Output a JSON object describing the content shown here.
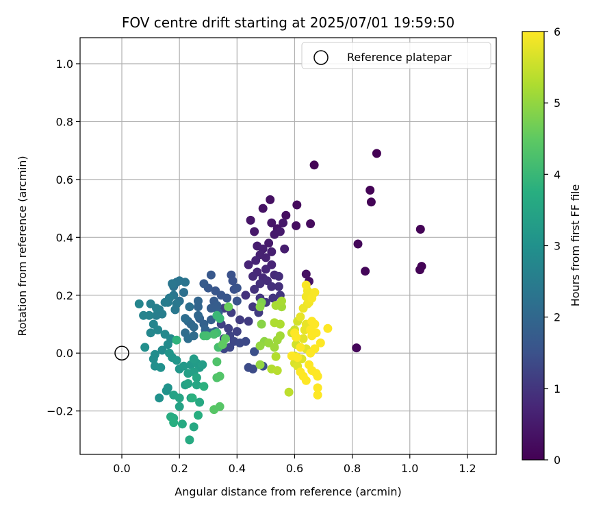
{
  "chart_data": {
    "type": "scatter",
    "title": "FOV centre drift starting at 2025/07/01 19:59:50",
    "xlabel": "Angular distance from reference (arcmin)",
    "ylabel": "Rotation from reference (arcmin)",
    "xlim": [
      -0.145,
      1.3
    ],
    "ylim": [
      -0.35,
      1.09
    ],
    "xticks": [
      0.0,
      0.2,
      0.4,
      0.6,
      0.8,
      1.0,
      1.2
    ],
    "xtick_labels": [
      "0.0",
      "0.2",
      "0.4",
      "0.6",
      "0.8",
      "1.0",
      "1.2"
    ],
    "yticks": [
      -0.2,
      0.0,
      0.2,
      0.4,
      0.6,
      0.8,
      1.0
    ],
    "ytick_labels": [
      "−0.2",
      "0.0",
      "0.2",
      "0.4",
      "0.6",
      "0.8",
      "1.0"
    ],
    "grid": true,
    "legend": {
      "position": "top-right",
      "entries": [
        "Reference platepar"
      ]
    },
    "reference_point": {
      "x": 0.0,
      "y": 0.0
    },
    "colorbar": {
      "label": "Hours from first FF file",
      "min": 0,
      "max": 6,
      "ticks": [
        0,
        1,
        2,
        3,
        4,
        5,
        6
      ],
      "tick_labels": [
        "0",
        "1",
        "2",
        "3",
        "4",
        "5",
        "6"
      ],
      "colormap": "viridis"
    },
    "points": [
      {
        "x": 0.885,
        "y": 0.69,
        "h": 0.0
      },
      {
        "x": 0.668,
        "y": 0.65,
        "h": 0.05
      },
      {
        "x": 0.862,
        "y": 0.563,
        "h": 0.05
      },
      {
        "x": 0.866,
        "y": 0.522,
        "h": 0.05
      },
      {
        "x": 1.037,
        "y": 0.428,
        "h": 0.05
      },
      {
        "x": 1.041,
        "y": 0.3,
        "h": 0.05
      },
      {
        "x": 1.035,
        "y": 0.288,
        "h": 0.05
      },
      {
        "x": 0.82,
        "y": 0.377,
        "h": 0.1
      },
      {
        "x": 0.845,
        "y": 0.283,
        "h": 0.1
      },
      {
        "x": 0.815,
        "y": 0.018,
        "h": 0.1
      },
      {
        "x": 0.608,
        "y": 0.512,
        "h": 0.2
      },
      {
        "x": 0.655,
        "y": 0.447,
        "h": 0.2
      },
      {
        "x": 0.57,
        "y": 0.476,
        "h": 0.25
      },
      {
        "x": 0.605,
        "y": 0.44,
        "h": 0.25
      },
      {
        "x": 0.64,
        "y": 0.273,
        "h": 0.3
      },
      {
        "x": 0.65,
        "y": 0.248,
        "h": 0.3
      },
      {
        "x": 0.515,
        "y": 0.53,
        "h": 0.3
      },
      {
        "x": 0.49,
        "y": 0.5,
        "h": 0.35
      },
      {
        "x": 0.447,
        "y": 0.459,
        "h": 0.4
      },
      {
        "x": 0.54,
        "y": 0.43,
        "h": 0.4
      },
      {
        "x": 0.52,
        "y": 0.45,
        "h": 0.4
      },
      {
        "x": 0.56,
        "y": 0.45,
        "h": 0.45
      },
      {
        "x": 0.46,
        "y": 0.42,
        "h": 0.45
      },
      {
        "x": 0.53,
        "y": 0.41,
        "h": 0.5
      },
      {
        "x": 0.55,
        "y": 0.42,
        "h": 0.5
      },
      {
        "x": 0.51,
        "y": 0.38,
        "h": 0.5
      },
      {
        "x": 0.565,
        "y": 0.36,
        "h": 0.55
      },
      {
        "x": 0.47,
        "y": 0.37,
        "h": 0.55
      },
      {
        "x": 0.49,
        "y": 0.36,
        "h": 0.6
      },
      {
        "x": 0.52,
        "y": 0.35,
        "h": 0.6
      },
      {
        "x": 0.48,
        "y": 0.34,
        "h": 0.65
      },
      {
        "x": 0.5,
        "y": 0.33,
        "h": 0.65
      },
      {
        "x": 0.465,
        "y": 0.32,
        "h": 0.7
      },
      {
        "x": 0.44,
        "y": 0.305,
        "h": 0.7
      },
      {
        "x": 0.52,
        "y": 0.305,
        "h": 0.7
      },
      {
        "x": 0.5,
        "y": 0.29,
        "h": 0.75
      },
      {
        "x": 0.47,
        "y": 0.28,
        "h": 0.75
      },
      {
        "x": 0.455,
        "y": 0.265,
        "h": 0.8
      },
      {
        "x": 0.49,
        "y": 0.26,
        "h": 0.8
      },
      {
        "x": 0.53,
        "y": 0.27,
        "h": 0.8
      },
      {
        "x": 0.545,
        "y": 0.265,
        "h": 0.85
      },
      {
        "x": 0.505,
        "y": 0.25,
        "h": 0.85
      },
      {
        "x": 0.48,
        "y": 0.24,
        "h": 0.9
      },
      {
        "x": 0.52,
        "y": 0.23,
        "h": 0.9
      },
      {
        "x": 0.545,
        "y": 0.23,
        "h": 0.9
      },
      {
        "x": 0.46,
        "y": 0.22,
        "h": 0.95
      },
      {
        "x": 0.43,
        "y": 0.2,
        "h": 0.95
      },
      {
        "x": 0.48,
        "y": 0.19,
        "h": 1.0
      },
      {
        "x": 0.525,
        "y": 0.19,
        "h": 1.0
      },
      {
        "x": 0.55,
        "y": 0.2,
        "h": 1.0
      },
      {
        "x": 0.5,
        "y": 0.175,
        "h": 1.05
      },
      {
        "x": 0.455,
        "y": 0.16,
        "h": 1.05
      },
      {
        "x": 0.475,
        "y": 0.14,
        "h": 1.1
      },
      {
        "x": 0.44,
        "y": 0.11,
        "h": 1.1
      },
      {
        "x": 0.41,
        "y": 0.115,
        "h": 1.1
      },
      {
        "x": 0.38,
        "y": 0.14,
        "h": 1.15
      },
      {
        "x": 0.355,
        "y": 0.155,
        "h": 1.15
      },
      {
        "x": 0.345,
        "y": 0.1,
        "h": 1.2
      },
      {
        "x": 0.37,
        "y": 0.085,
        "h": 1.2
      },
      {
        "x": 0.4,
        "y": 0.075,
        "h": 1.2
      },
      {
        "x": 0.375,
        "y": 0.06,
        "h": 1.25
      },
      {
        "x": 0.355,
        "y": 0.05,
        "h": 1.25
      },
      {
        "x": 0.39,
        "y": 0.04,
        "h": 1.3
      },
      {
        "x": 0.375,
        "y": 0.02,
        "h": 1.3
      },
      {
        "x": 0.355,
        "y": 0.015,
        "h": 1.3
      },
      {
        "x": 0.41,
        "y": 0.035,
        "h": 1.35
      },
      {
        "x": 0.43,
        "y": 0.04,
        "h": 1.35
      },
      {
        "x": 0.44,
        "y": -0.05,
        "h": 1.4
      },
      {
        "x": 0.455,
        "y": -0.055,
        "h": 1.4
      },
      {
        "x": 0.49,
        "y": -0.045,
        "h": 1.45
      },
      {
        "x": 0.46,
        "y": 0.005,
        "h": 1.45
      },
      {
        "x": 0.38,
        "y": 0.27,
        "h": 1.5
      },
      {
        "x": 0.385,
        "y": 0.25,
        "h": 1.5
      },
      {
        "x": 0.39,
        "y": 0.22,
        "h": 1.5
      },
      {
        "x": 0.4,
        "y": 0.225,
        "h": 1.55
      },
      {
        "x": 0.4,
        "y": 0.18,
        "h": 1.55
      },
      {
        "x": 0.365,
        "y": 0.19,
        "h": 1.6
      },
      {
        "x": 0.345,
        "y": 0.2,
        "h": 1.6
      },
      {
        "x": 0.325,
        "y": 0.215,
        "h": 1.6
      },
      {
        "x": 0.31,
        "y": 0.27,
        "h": 1.65
      },
      {
        "x": 0.3,
        "y": 0.225,
        "h": 1.65
      },
      {
        "x": 0.285,
        "y": 0.24,
        "h": 1.7
      },
      {
        "x": 0.32,
        "y": 0.18,
        "h": 1.7
      },
      {
        "x": 0.33,
        "y": 0.165,
        "h": 1.75
      },
      {
        "x": 0.31,
        "y": 0.155,
        "h": 1.75
      },
      {
        "x": 0.335,
        "y": 0.14,
        "h": 1.8
      },
      {
        "x": 0.31,
        "y": 0.115,
        "h": 1.8
      },
      {
        "x": 0.285,
        "y": 0.1,
        "h": 1.85
      },
      {
        "x": 0.27,
        "y": 0.12,
        "h": 1.85
      },
      {
        "x": 0.29,
        "y": 0.08,
        "h": 1.9
      },
      {
        "x": 0.31,
        "y": 0.07,
        "h": 1.9
      },
      {
        "x": 0.325,
        "y": 0.075,
        "h": 1.9
      },
      {
        "x": 0.265,
        "y": 0.18,
        "h": 1.95
      },
      {
        "x": 0.265,
        "y": 0.16,
        "h": 1.95
      },
      {
        "x": 0.265,
        "y": 0.13,
        "h": 2.0
      },
      {
        "x": 0.24,
        "y": 0.1,
        "h": 2.0
      },
      {
        "x": 0.23,
        "y": 0.11,
        "h": 2.05
      },
      {
        "x": 0.25,
        "y": 0.09,
        "h": 2.05
      },
      {
        "x": 0.22,
        "y": 0.07,
        "h": 2.1
      },
      {
        "x": 0.25,
        "y": 0.06,
        "h": 2.1
      },
      {
        "x": 0.23,
        "y": 0.05,
        "h": 2.15
      },
      {
        "x": 0.22,
        "y": 0.12,
        "h": 2.15
      },
      {
        "x": 0.235,
        "y": 0.16,
        "h": 2.2
      },
      {
        "x": 0.2,
        "y": 0.18,
        "h": 2.2
      },
      {
        "x": 0.215,
        "y": 0.21,
        "h": 2.2
      },
      {
        "x": 0.19,
        "y": 0.245,
        "h": 2.25
      },
      {
        "x": 0.18,
        "y": 0.23,
        "h": 2.25
      },
      {
        "x": 0.2,
        "y": 0.25,
        "h": 2.3
      },
      {
        "x": 0.22,
        "y": 0.245,
        "h": 2.3
      },
      {
        "x": 0.175,
        "y": 0.24,
        "h": 2.35
      },
      {
        "x": 0.18,
        "y": 0.2,
        "h": 2.35
      },
      {
        "x": 0.19,
        "y": 0.17,
        "h": 2.4
      },
      {
        "x": 0.185,
        "y": 0.15,
        "h": 2.4
      },
      {
        "x": 0.16,
        "y": 0.175,
        "h": 2.45
      },
      {
        "x": 0.165,
        "y": 0.19,
        "h": 2.45
      },
      {
        "x": 0.15,
        "y": 0.175,
        "h": 2.5
      },
      {
        "x": 0.13,
        "y": 0.15,
        "h": 2.5
      },
      {
        "x": 0.14,
        "y": 0.135,
        "h": 2.55
      },
      {
        "x": 0.12,
        "y": 0.13,
        "h": 2.55
      },
      {
        "x": 0.1,
        "y": 0.17,
        "h": 2.6
      },
      {
        "x": 0.12,
        "y": 0.155,
        "h": 2.6
      },
      {
        "x": 0.095,
        "y": 0.13,
        "h": 2.65
      },
      {
        "x": 0.075,
        "y": 0.13,
        "h": 2.65
      },
      {
        "x": 0.06,
        "y": 0.17,
        "h": 2.7
      },
      {
        "x": 0.11,
        "y": 0.1,
        "h": 2.7
      },
      {
        "x": 0.1,
        "y": 0.07,
        "h": 2.75
      },
      {
        "x": 0.125,
        "y": 0.08,
        "h": 2.75
      },
      {
        "x": 0.15,
        "y": 0.065,
        "h": 2.8
      },
      {
        "x": 0.17,
        "y": 0.05,
        "h": 2.8
      },
      {
        "x": 0.16,
        "y": 0.03,
        "h": 2.85
      },
      {
        "x": 0.14,
        "y": 0.01,
        "h": 2.85
      },
      {
        "x": 0.115,
        "y": -0.005,
        "h": 2.9
      },
      {
        "x": 0.11,
        "y": -0.02,
        "h": 2.9
      },
      {
        "x": 0.08,
        "y": 0.02,
        "h": 2.95
      },
      {
        "x": 0.115,
        "y": -0.045,
        "h": 2.95
      },
      {
        "x": 0.135,
        "y": -0.05,
        "h": 3.0
      },
      {
        "x": 0.13,
        "y": -0.155,
        "h": 3.0
      },
      {
        "x": 0.155,
        "y": -0.13,
        "h": 3.05
      },
      {
        "x": 0.16,
        "y": -0.12,
        "h": 3.05
      },
      {
        "x": 0.165,
        "y": 0.0,
        "h": 3.1
      },
      {
        "x": 0.175,
        "y": -0.015,
        "h": 3.1
      },
      {
        "x": 0.19,
        "y": -0.025,
        "h": 3.15
      },
      {
        "x": 0.2,
        "y": -0.055,
        "h": 3.15
      },
      {
        "x": 0.215,
        "y": -0.045,
        "h": 3.2
      },
      {
        "x": 0.24,
        "y": -0.04,
        "h": 3.2
      },
      {
        "x": 0.26,
        "y": -0.035,
        "h": 3.25
      },
      {
        "x": 0.27,
        "y": -0.05,
        "h": 3.25
      },
      {
        "x": 0.28,
        "y": -0.04,
        "h": 3.3
      },
      {
        "x": 0.25,
        "y": -0.02,
        "h": 3.3
      },
      {
        "x": 0.23,
        "y": -0.07,
        "h": 3.35
      },
      {
        "x": 0.25,
        "y": -0.065,
        "h": 3.35
      },
      {
        "x": 0.22,
        "y": -0.11,
        "h": 3.4
      },
      {
        "x": 0.24,
        "y": -0.155,
        "h": 3.4
      },
      {
        "x": 0.18,
        "y": -0.145,
        "h": 3.45
      },
      {
        "x": 0.2,
        "y": -0.185,
        "h": 3.45
      },
      {
        "x": 0.2,
        "y": -0.155,
        "h": 3.5
      },
      {
        "x": 0.23,
        "y": -0.105,
        "h": 3.5
      },
      {
        "x": 0.26,
        "y": -0.085,
        "h": 3.55
      },
      {
        "x": 0.26,
        "y": -0.11,
        "h": 3.55
      },
      {
        "x": 0.27,
        "y": -0.17,
        "h": 3.6
      },
      {
        "x": 0.25,
        "y": -0.255,
        "h": 3.6
      },
      {
        "x": 0.235,
        "y": -0.3,
        "h": 3.65
      },
      {
        "x": 0.21,
        "y": -0.245,
        "h": 3.65
      },
      {
        "x": 0.18,
        "y": -0.225,
        "h": 3.7
      },
      {
        "x": 0.17,
        "y": -0.22,
        "h": 3.7
      },
      {
        "x": 0.18,
        "y": -0.24,
        "h": 3.75
      },
      {
        "x": 0.265,
        "y": -0.215,
        "h": 3.75
      },
      {
        "x": 0.285,
        "y": -0.115,
        "h": 3.8
      },
      {
        "x": 0.245,
        "y": -0.155,
        "h": 3.8
      },
      {
        "x": 0.19,
        "y": 0.045,
        "h": 3.85
      },
      {
        "x": 0.33,
        "y": 0.13,
        "h": 4.0
      },
      {
        "x": 0.34,
        "y": 0.12,
        "h": 4.0
      },
      {
        "x": 0.33,
        "y": 0.07,
        "h": 4.1
      },
      {
        "x": 0.285,
        "y": 0.06,
        "h": 4.1
      },
      {
        "x": 0.295,
        "y": 0.06,
        "h": 4.15
      },
      {
        "x": 0.32,
        "y": 0.065,
        "h": 4.2
      },
      {
        "x": 0.335,
        "y": 0.02,
        "h": 4.2
      },
      {
        "x": 0.33,
        "y": -0.03,
        "h": 4.3
      },
      {
        "x": 0.33,
        "y": -0.085,
        "h": 4.3
      },
      {
        "x": 0.34,
        "y": -0.08,
        "h": 4.35
      },
      {
        "x": 0.32,
        "y": -0.195,
        "h": 4.4
      },
      {
        "x": 0.34,
        "y": -0.185,
        "h": 4.4
      },
      {
        "x": 0.36,
        "y": 0.05,
        "h": 4.5
      },
      {
        "x": 0.35,
        "y": 0.03,
        "h": 4.5
      },
      {
        "x": 0.37,
        "y": 0.16,
        "h": 4.6
      },
      {
        "x": 0.485,
        "y": 0.175,
        "h": 4.8
      },
      {
        "x": 0.48,
        "y": 0.16,
        "h": 4.9
      },
      {
        "x": 0.485,
        "y": 0.1,
        "h": 4.9
      },
      {
        "x": 0.495,
        "y": 0.04,
        "h": 4.95
      },
      {
        "x": 0.48,
        "y": 0.025,
        "h": 5.0
      },
      {
        "x": 0.48,
        "y": -0.04,
        "h": 5.0
      },
      {
        "x": 0.51,
        "y": 0.035,
        "h": 5.05
      },
      {
        "x": 0.53,
        "y": 0.02,
        "h": 5.1
      },
      {
        "x": 0.54,
        "y": 0.045,
        "h": 5.1
      },
      {
        "x": 0.55,
        "y": 0.06,
        "h": 5.15
      },
      {
        "x": 0.555,
        "y": 0.16,
        "h": 5.15
      },
      {
        "x": 0.555,
        "y": 0.18,
        "h": 5.2
      },
      {
        "x": 0.535,
        "y": 0.165,
        "h": 5.2
      },
      {
        "x": 0.53,
        "y": 0.105,
        "h": 5.25
      },
      {
        "x": 0.55,
        "y": 0.1,
        "h": 5.25
      },
      {
        "x": 0.535,
        "y": -0.012,
        "h": 5.3
      },
      {
        "x": 0.52,
        "y": -0.055,
        "h": 5.3
      },
      {
        "x": 0.54,
        "y": -0.06,
        "h": 5.35
      },
      {
        "x": 0.58,
        "y": -0.135,
        "h": 5.4
      },
      {
        "x": 0.59,
        "y": 0.07,
        "h": 5.5
      },
      {
        "x": 0.6,
        "y": 0.08,
        "h": 5.55
      },
      {
        "x": 0.61,
        "y": 0.11,
        "h": 5.6
      },
      {
        "x": 0.605,
        "y": 0.03,
        "h": 5.6
      },
      {
        "x": 0.6,
        "y": -0.01,
        "h": 5.65
      },
      {
        "x": 0.6,
        "y": -0.035,
        "h": 5.65
      },
      {
        "x": 0.61,
        "y": -0.045,
        "h": 5.7
      },
      {
        "x": 0.625,
        "y": -0.02,
        "h": 5.7
      },
      {
        "x": 0.64,
        "y": 0.015,
        "h": 5.75
      },
      {
        "x": 0.63,
        "y": 0.05,
        "h": 5.75
      },
      {
        "x": 0.635,
        "y": 0.08,
        "h": 5.8
      },
      {
        "x": 0.64,
        "y": 0.1,
        "h": 5.8
      },
      {
        "x": 0.62,
        "y": 0.125,
        "h": 5.8
      },
      {
        "x": 0.63,
        "y": 0.155,
        "h": 5.85
      },
      {
        "x": 0.645,
        "y": 0.17,
        "h": 5.85
      },
      {
        "x": 0.65,
        "y": 0.175,
        "h": 5.9
      },
      {
        "x": 0.64,
        "y": 0.195,
        "h": 5.9
      },
      {
        "x": 0.645,
        "y": 0.215,
        "h": 5.9
      },
      {
        "x": 0.64,
        "y": 0.235,
        "h": 5.95
      },
      {
        "x": 0.66,
        "y": 0.19,
        "h": 5.95
      },
      {
        "x": 0.67,
        "y": 0.21,
        "h": 5.95
      },
      {
        "x": 0.66,
        "y": 0.11,
        "h": 6.0
      },
      {
        "x": 0.67,
        "y": 0.1,
        "h": 6.0
      },
      {
        "x": 0.655,
        "y": 0.08,
        "h": 6.0
      },
      {
        "x": 0.66,
        "y": 0.06,
        "h": 6.0
      },
      {
        "x": 0.675,
        "y": 0.07,
        "h": 6.0
      },
      {
        "x": 0.69,
        "y": 0.035,
        "h": 6.0
      },
      {
        "x": 0.715,
        "y": 0.085,
        "h": 6.0
      },
      {
        "x": 0.67,
        "y": 0.015,
        "h": 6.0
      },
      {
        "x": 0.655,
        "y": 0.0,
        "h": 6.0
      },
      {
        "x": 0.65,
        "y": -0.04,
        "h": 6.0
      },
      {
        "x": 0.66,
        "y": -0.06,
        "h": 6.0
      },
      {
        "x": 0.675,
        "y": -0.07,
        "h": 6.0
      },
      {
        "x": 0.68,
        "y": -0.08,
        "h": 6.0
      },
      {
        "x": 0.68,
        "y": -0.12,
        "h": 6.0
      },
      {
        "x": 0.68,
        "y": -0.145,
        "h": 6.0
      },
      {
        "x": 0.64,
        "y": -0.095,
        "h": 6.0
      },
      {
        "x": 0.63,
        "y": -0.08,
        "h": 6.0
      },
      {
        "x": 0.62,
        "y": -0.065,
        "h": 6.0
      },
      {
        "x": 0.61,
        "y": -0.015,
        "h": 6.0
      },
      {
        "x": 0.62,
        "y": 0.02,
        "h": 6.0
      },
      {
        "x": 0.6,
        "y": 0.07,
        "h": 6.0
      },
      {
        "x": 0.605,
        "y": 0.055,
        "h": 6.0
      },
      {
        "x": 0.59,
        "y": -0.01,
        "h": 6.0
      }
    ]
  }
}
